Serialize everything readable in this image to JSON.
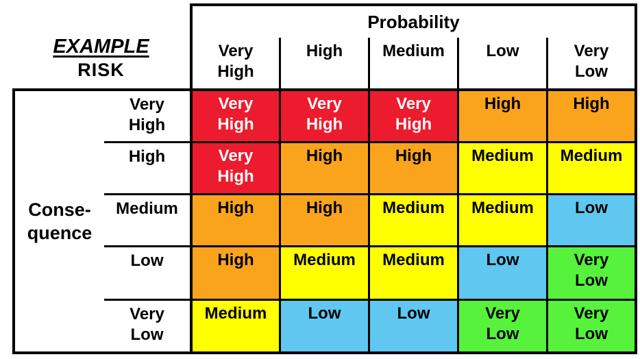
{
  "title": {
    "line1": "EXAMPLE",
    "line2": "RISK"
  },
  "probability_axis": {
    "label": "Probability",
    "levels": [
      "Very High",
      "High",
      "Medium",
      "Low",
      "Very Low"
    ]
  },
  "consequence_axis": {
    "label_lines": [
      "Conse-",
      "quence"
    ],
    "levels": [
      "Very High",
      "High",
      "Medium",
      "Low",
      "Very Low"
    ]
  },
  "colors": {
    "very_high": "#EC1B2D",
    "high": "#FAA41C",
    "medium": "#FFFF00",
    "low": "#5FC7F0",
    "very_low": "#57F23C",
    "border": "#000000",
    "background": "#FFFFFF"
  },
  "text_colors": {
    "very_high": "#FFFFFF",
    "default": "#000000"
  },
  "matrix": {
    "rows": [
      {
        "consequence": "Very High",
        "cells": [
          {
            "label": "Very High",
            "level": "very_high"
          },
          {
            "label": "Very High",
            "level": "very_high"
          },
          {
            "label": "Very High",
            "level": "very_high"
          },
          {
            "label": "High",
            "level": "high"
          },
          {
            "label": "High",
            "level": "high"
          }
        ]
      },
      {
        "consequence": "High",
        "cells": [
          {
            "label": "Very High",
            "level": "very_high"
          },
          {
            "label": "High",
            "level": "high"
          },
          {
            "label": "High",
            "level": "high"
          },
          {
            "label": "Medium",
            "level": "medium"
          },
          {
            "label": "Medium",
            "level": "medium"
          }
        ]
      },
      {
        "consequence": "Medium",
        "cells": [
          {
            "label": "High",
            "level": "high"
          },
          {
            "label": "High",
            "level": "high"
          },
          {
            "label": "Medium",
            "level": "medium"
          },
          {
            "label": "Medium",
            "level": "medium"
          },
          {
            "label": "Low",
            "level": "low"
          }
        ]
      },
      {
        "consequence": "Low",
        "cells": [
          {
            "label": "High",
            "level": "high"
          },
          {
            "label": "Medium",
            "level": "medium"
          },
          {
            "label": "Medium",
            "level": "medium"
          },
          {
            "label": "Low",
            "level": "low"
          },
          {
            "label": "Very Low",
            "level": "very_low"
          }
        ]
      },
      {
        "consequence": "Very Low",
        "cells": [
          {
            "label": "Medium",
            "level": "medium"
          },
          {
            "label": "Low",
            "level": "low"
          },
          {
            "label": "Low",
            "level": "low"
          },
          {
            "label": "Very Low",
            "level": "very_low"
          },
          {
            "label": "Very Low",
            "level": "very_low"
          }
        ]
      }
    ]
  }
}
